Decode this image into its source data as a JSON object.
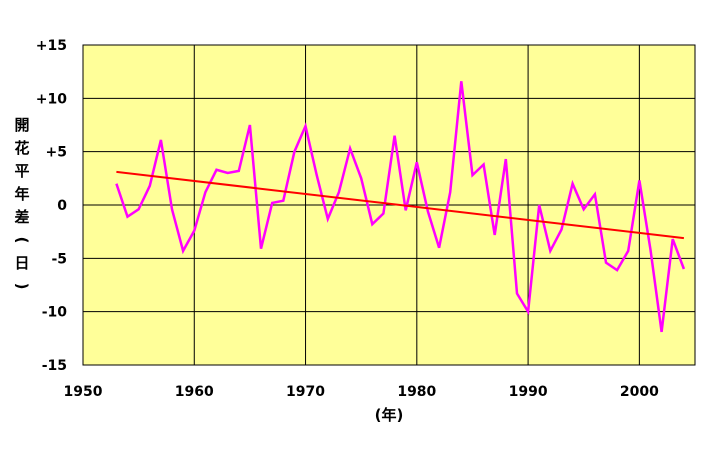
{
  "chart_data": {
    "type": "line",
    "title": "",
    "xlabel": "(年)",
    "ylabel": "開花平年差(日)",
    "xlim": [
      1950,
      2005
    ],
    "ylim": [
      -15,
      15
    ],
    "x_ticks": [
      1950,
      1960,
      1970,
      1980,
      1990,
      2000
    ],
    "y_ticks": [
      15,
      10,
      5,
      0,
      -5,
      -10,
      -15
    ],
    "y_tick_labels": [
      "+15",
      "+10",
      "+5",
      "0",
      "-5",
      "-10",
      "-15"
    ],
    "grid": true,
    "background_color": "#ffff99",
    "series": [
      {
        "color": "#ff00ff",
        "x": [
          1953,
          1954,
          1955,
          1956,
          1957,
          1958,
          1959,
          1960,
          1961,
          1962,
          1963,
          1964,
          1965,
          1966,
          1967,
          1968,
          1969,
          1970,
          1971,
          1972,
          1973,
          1974,
          1975,
          1976,
          1977,
          1978,
          1979,
          1980,
          1981,
          1982,
          1983,
          1984,
          1985,
          1986,
          1987,
          1988,
          1989,
          1990,
          1991,
          1992,
          1993,
          1994,
          1995,
          1996,
          1997,
          1998,
          1999,
          2000,
          2001,
          2002,
          2003,
          2004
        ],
        "values": [
          2,
          -1.1,
          -0.4,
          1.8,
          6.1,
          -0.4,
          -4.3,
          -2.4,
          1.2,
          3.3,
          3,
          3.2,
          7.5,
          -4.1,
          0.2,
          0.4,
          5,
          7.4,
          2.8,
          -1.3,
          1.2,
          5.3,
          2.5,
          -1.8,
          -0.8,
          6.5,
          -0.5,
          4,
          -0.6,
          -4,
          1.2,
          11.6,
          2.8,
          3.8,
          -2.8,
          4.3,
          -8.3,
          -10,
          0,
          -4.3,
          -2.3,
          2,
          -0.4,
          1,
          -5.4,
          -6.1,
          -4.3,
          2.3,
          -4.2,
          -11.9,
          -3.2,
          -6
        ]
      },
      {
        "color": "#ff0000",
        "x": [
          1953,
          2004
        ],
        "values": [
          3.1,
          -3.1
        ]
      }
    ]
  }
}
